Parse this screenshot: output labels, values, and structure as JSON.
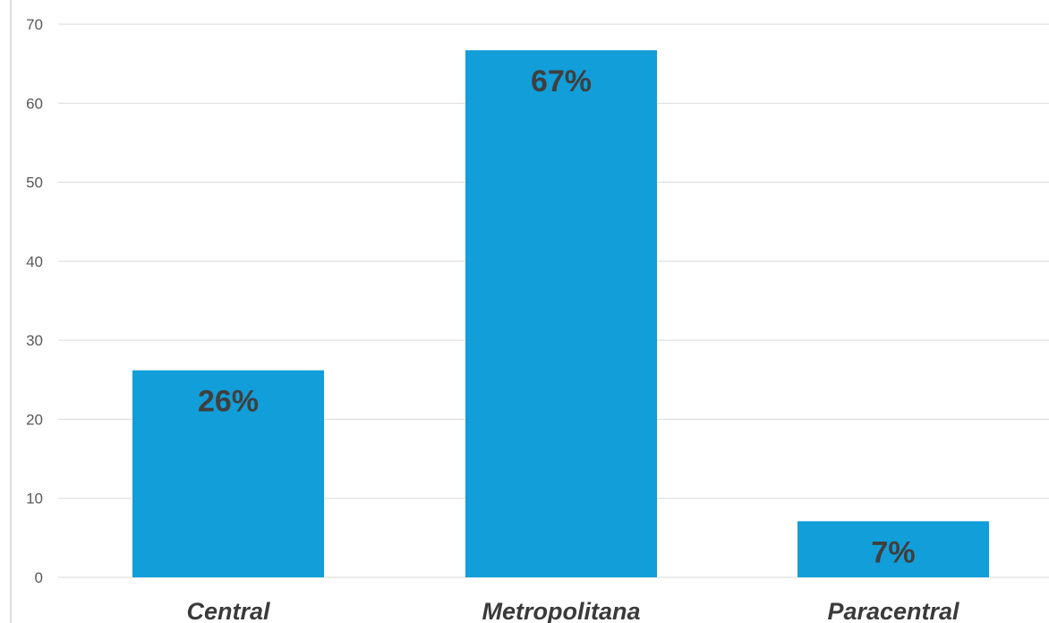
{
  "chart_data": {
    "type": "bar",
    "categories": [
      "Central",
      "Metropolitana",
      "Paracentral"
    ],
    "values": [
      26.2,
      66.7,
      7.1
    ],
    "data_labels": [
      "26%",
      "67%",
      "7%"
    ],
    "title": "",
    "xlabel": "",
    "ylabel": "",
    "ylim": [
      0,
      70
    ],
    "yticks": [
      0,
      10,
      20,
      30,
      40,
      50,
      60,
      70
    ],
    "grid": true,
    "legend": "none",
    "bar_color": "#129ed8"
  }
}
